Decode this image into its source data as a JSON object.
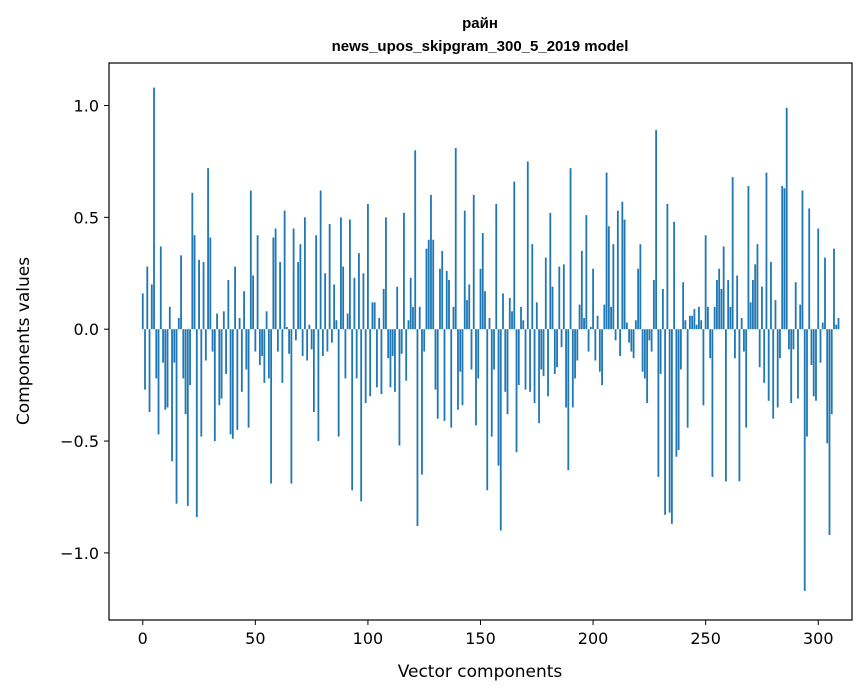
{
  "chart_data": {
    "type": "bar",
    "title": "райн",
    "subtitle": "news_upos_skipgram_300_5_2019 model",
    "xlabel": "Vector components",
    "ylabel": "Components values",
    "xlim": [
      -15,
      315
    ],
    "ylim": [
      -1.3,
      1.19
    ],
    "xticks": [
      0,
      50,
      100,
      150,
      200,
      250,
      300
    ],
    "xtick_labels": [
      "0",
      "50",
      "100",
      "150",
      "200",
      "250",
      "300"
    ],
    "yticks": [
      -1.0,
      -0.5,
      0.0,
      0.5,
      1.0
    ],
    "ytick_labels": [
      "−1.0",
      "−0.5",
      "0.0",
      "0.5",
      "1.0"
    ],
    "grid": false,
    "bar_color": "#1f77b4",
    "x_start": 0,
    "values": [
      0.16,
      -0.27,
      0.28,
      -0.37,
      0.2,
      1.08,
      -0.22,
      -0.47,
      0.37,
      -0.15,
      -0.36,
      -0.35,
      0.1,
      -0.59,
      -0.15,
      -0.78,
      0.05,
      0.33,
      -0.22,
      -0.38,
      -0.79,
      -0.25,
      0.61,
      0.42,
      -0.84,
      0.31,
      -0.48,
      0.3,
      -0.14,
      0.72,
      0.41,
      -0.1,
      -0.5,
      0.07,
      -0.34,
      -0.31,
      0.08,
      -0.2,
      0.22,
      -0.47,
      -0.49,
      0.28,
      -0.45,
      0.05,
      -0.28,
      0.17,
      -0.18,
      -0.44,
      0.62,
      0.24,
      -0.1,
      0.42,
      -0.16,
      -0.12,
      -0.24,
      0.08,
      -0.22,
      -0.69,
      0.41,
      0.45,
      -0.1,
      0.3,
      -0.24,
      0.53,
      0.01,
      -0.11,
      -0.69,
      0.45,
      -0.05,
      0.3,
      0.38,
      -0.12,
      0.5,
      -0.14,
      0.02,
      -0.09,
      -0.37,
      0.42,
      -0.5,
      0.62,
      -0.12,
      0.25,
      -0.1,
      0.47,
      -0.06,
      0.2,
      0.04,
      -0.48,
      0.5,
      0.28,
      -0.22,
      0.07,
      0.49,
      -0.72,
      0.23,
      -0.22,
      0.34,
      -0.77,
      0.25,
      -0.33,
      0.56,
      -0.3,
      0.12,
      0.12,
      -0.26,
      0.05,
      -0.29,
      0.18,
      0.5,
      -0.13,
      -0.26,
      -0.12,
      -0.28,
      0.19,
      -0.52,
      -0.11,
      0.52,
      -0.23,
      0.04,
      0.23,
      0.1,
      0.8,
      -0.88,
      0.1,
      -0.65,
      -0.1,
      0.36,
      0.4,
      0.6,
      0.4,
      -0.27,
      -0.4,
      0.27,
      0.35,
      -0.41,
      0.26,
      0.22,
      -0.44,
      0.1,
      0.81,
      -0.36,
      -0.19,
      -0.34,
      0.53,
      0.13,
      0.2,
      -0.18,
      0.6,
      -0.43,
      -0.22,
      0.27,
      0.43,
      0.17,
      -0.72,
      0.05,
      -0.48,
      -0.18,
      0.56,
      -0.61,
      -0.9,
      0.16,
      -0.28,
      -0.38,
      0.14,
      0.08,
      0.66,
      -0.55,
      -0.25,
      0.1,
      0.04,
      -0.27,
      0.75,
      -0.28,
      0.38,
      -0.33,
      0.12,
      -0.42,
      -0.18,
      -0.21,
      0.32,
      -0.3,
      0.52,
      0.19,
      -0.2,
      -0.17,
      0.28,
      -0.08,
      0.29,
      -0.35,
      -0.63,
      0.72,
      -0.35,
      -0.22,
      -0.14,
      0.11,
      0.35,
      0.05,
      0.51,
      -0.1,
      0.01,
      0.27,
      -0.14,
      0.06,
      -0.19,
      -0.25,
      0.11,
      0.7,
      0.46,
      0.1,
      0.38,
      -0.05,
      0.53,
      -0.12,
      0.57,
      0.49,
      0.03,
      -0.06,
      -0.1,
      -0.13,
      0.04,
      0.27,
      0.38,
      -0.19,
      -0.22,
      -0.33,
      -0.05,
      -0.1,
      0.22,
      0.89,
      -0.66,
      -0.2,
      0.18,
      -0.83,
      0.56,
      -0.82,
      -0.87,
      0.48,
      -0.57,
      -0.54,
      -0.18,
      0.21,
      0.04,
      -0.44,
      0.06,
      0.06,
      0.09,
      0.02,
      0.1,
      0.04,
      -0.34,
      0.42,
      0.1,
      -0.13,
      -0.66,
      0.1,
      0.22,
      0.27,
      0.18,
      0.37,
      -0.68,
      0.22,
      0.1,
      0.68,
      -0.13,
      0.24,
      -0.68,
      0.05,
      -0.1,
      -0.44,
      0.64,
      0.12,
      0.22,
      0.29,
      0.38,
      -0.17,
      0.19,
      -0.24,
      0.7,
      -0.32,
      0.3,
      -0.4,
      0.13,
      -0.35,
      -0.13,
      0.64,
      0.63,
      0.99,
      -0.09,
      -0.33,
      -0.09,
      0.21,
      -0.31,
      0.11,
      0.62,
      -1.17,
      -0.48,
      0.54,
      -0.16,
      -0.3,
      -0.32,
      0.45,
      -0.15,
      0.03,
      0.32,
      -0.51,
      -0.92,
      -0.38,
      0.36,
      0.02,
      0.05
    ]
  }
}
